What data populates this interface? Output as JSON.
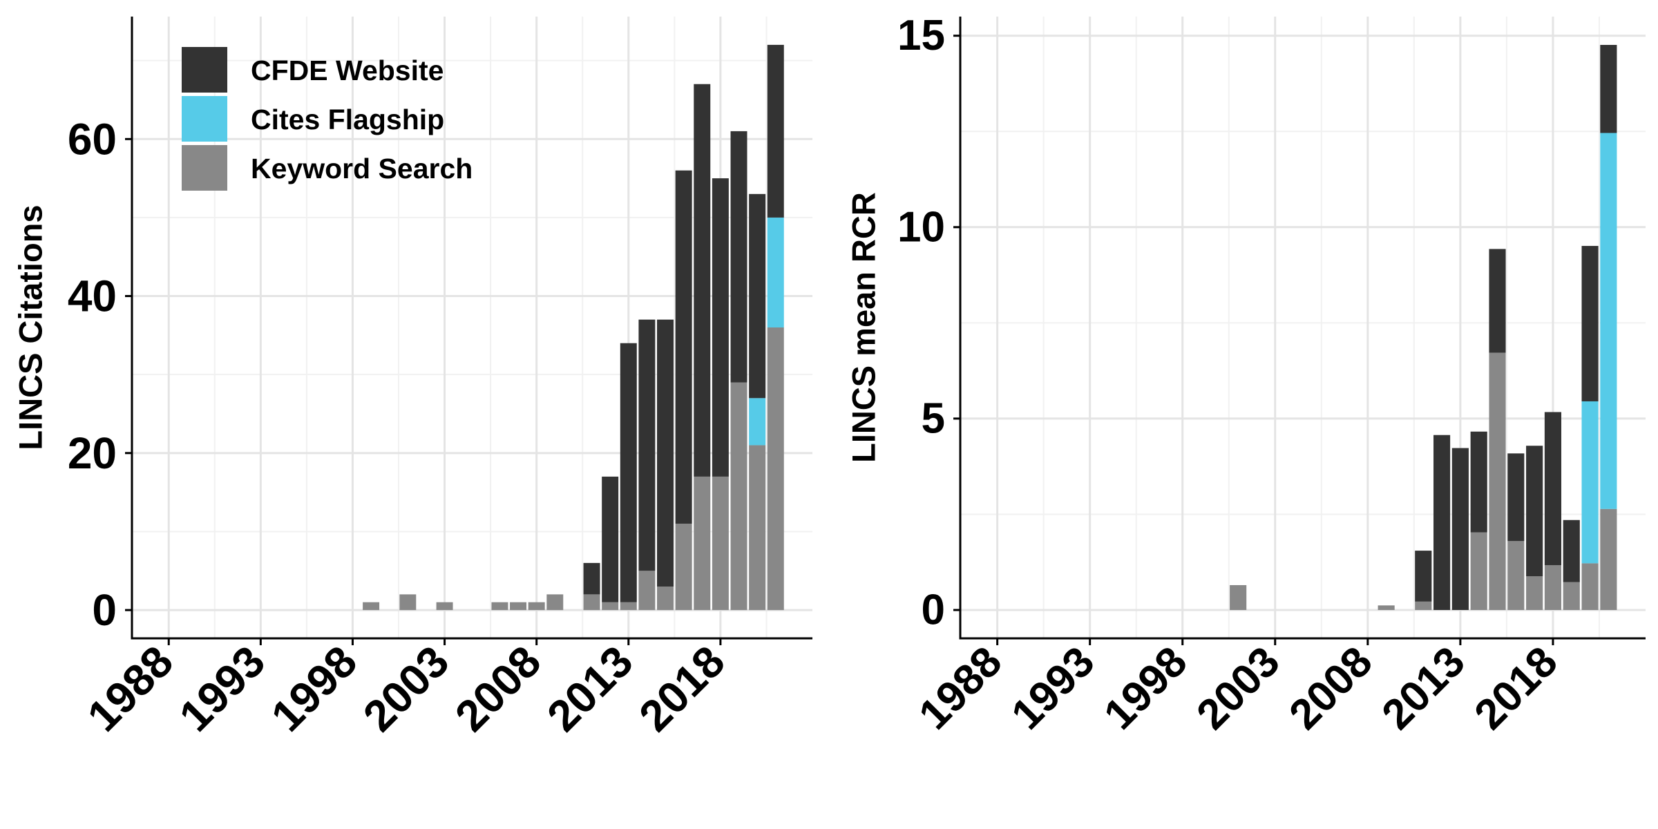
{
  "chart_data": [
    {
      "type": "bar",
      "stacked": true,
      "ylabel": "LINCS Citations",
      "xlabel": "",
      "xlim": [
        1986,
        2023
      ],
      "ylim": [
        -3.6,
        75.6
      ],
      "xticks": [
        1988,
        1993,
        1998,
        2003,
        2008,
        2013,
        2018
      ],
      "yticks": [
        0,
        20,
        40,
        60
      ],
      "grid": true,
      "legend": "top-left",
      "colors": {
        "Keyword Search": "#888888",
        "Cites Flagship": "#56cbe8",
        "CFDE Website": "#333333"
      },
      "legend_order": [
        "CFDE Website",
        "Cites Flagship",
        "Keyword Search"
      ],
      "x": [
        1999,
        2001,
        2003,
        2006,
        2007,
        2008,
        2009,
        2011,
        2012,
        2013,
        2014,
        2015,
        2016,
        2017,
        2018,
        2019,
        2020,
        2021
      ],
      "series": [
        {
          "name": "Keyword Search",
          "values": [
            1,
            2,
            1,
            1,
            1,
            1,
            2,
            2,
            1,
            1,
            5,
            3,
            11,
            17,
            17,
            29,
            21,
            36
          ]
        },
        {
          "name": "Cites Flagship",
          "values": [
            0,
            0,
            0,
            0,
            0,
            0,
            0,
            0,
            0,
            0,
            0,
            0,
            0,
            0,
            0,
            0,
            6,
            14
          ]
        },
        {
          "name": "CFDE Website",
          "values": [
            0,
            0,
            0,
            0,
            0,
            0,
            0,
            4,
            16,
            33,
            32,
            34,
            45,
            50,
            38,
            32,
            26,
            22
          ]
        }
      ]
    },
    {
      "type": "bar",
      "stacked": true,
      "ylabel": "LINCS mean RCR",
      "xlabel": "",
      "xlim": [
        1986,
        2023
      ],
      "ylim": [
        -0.74,
        15.5
      ],
      "xticks": [
        1988,
        1993,
        1998,
        2003,
        2008,
        2013,
        2018
      ],
      "yticks": [
        0,
        5,
        10,
        15
      ],
      "grid": true,
      "legend": "none",
      "colors": {
        "Keyword Search": "#888888",
        "Cites Flagship": "#56cbe8",
        "CFDE Website": "#333333"
      },
      "x": [
        2001,
        2009,
        2011,
        2012,
        2013,
        2014,
        2015,
        2016,
        2017,
        2018,
        2019,
        2020,
        2021
      ],
      "series": [
        {
          "name": "Keyword Search",
          "values": [
            0.65,
            0.12,
            0.22,
            0,
            0,
            2.03,
            6.72,
            1.8,
            0.88,
            1.17,
            0.73,
            1.22,
            2.64
          ]
        },
        {
          "name": "Cites Flagship",
          "values": [
            0,
            0,
            0,
            0,
            0,
            0,
            0,
            0,
            0,
            0,
            0,
            4.23,
            9.82
          ]
        },
        {
          "name": "CFDE Website",
          "values": [
            0,
            0,
            1.33,
            4.57,
            4.23,
            2.63,
            2.71,
            2.29,
            3.41,
            4.0,
            1.62,
            4.06,
            2.3
          ]
        }
      ]
    }
  ]
}
